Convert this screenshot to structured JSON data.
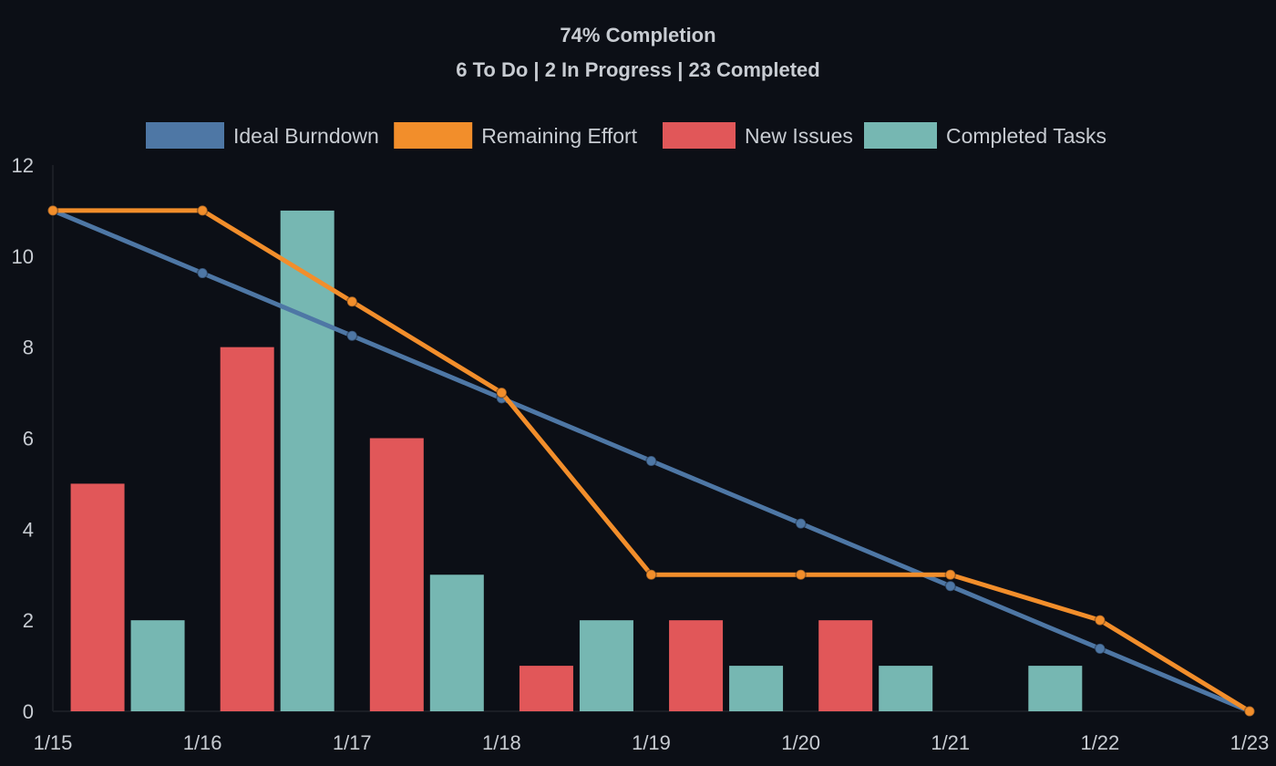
{
  "header": {
    "completion": "74% Completion",
    "status_line": "6 To Do | 2 In Progress | 23 Completed"
  },
  "colors": {
    "background": "#0c0f16",
    "ideal": "#4e77a5",
    "remaining": "#f28e2b",
    "new_issues": "#e15759",
    "completed": "#76b7b2",
    "text": "#c8ccd2",
    "axis": "#1b1e25"
  },
  "chart_data": {
    "type": "bar",
    "categories": [
      "1/15",
      "1/16",
      "1/17",
      "1/18",
      "1/19",
      "1/20",
      "1/21",
      "1/22",
      "1/23"
    ],
    "ylim": [
      0,
      12
    ],
    "yticks": [
      0,
      2,
      4,
      6,
      8,
      10,
      12
    ],
    "grid": false,
    "legend_position": "top",
    "series": [
      {
        "name": "Ideal Burndown",
        "type": "line",
        "color_key": "ideal",
        "values": [
          11,
          9.625,
          8.25,
          6.875,
          5.5,
          4.125,
          2.75,
          1.375,
          0
        ]
      },
      {
        "name": "Remaining Effort",
        "type": "line",
        "color_key": "remaining",
        "values": [
          11,
          11,
          9,
          7,
          3,
          3,
          3,
          2,
          0
        ]
      },
      {
        "name": "New Issues",
        "type": "bar",
        "color_key": "new_issues",
        "values": [
          0,
          5,
          8,
          6,
          1,
          2,
          2,
          0,
          0
        ]
      },
      {
        "name": "Completed Tasks",
        "type": "bar",
        "color_key": "completed",
        "values": [
          0,
          2,
          11,
          3,
          2,
          1,
          1,
          1,
          0
        ]
      }
    ]
  }
}
